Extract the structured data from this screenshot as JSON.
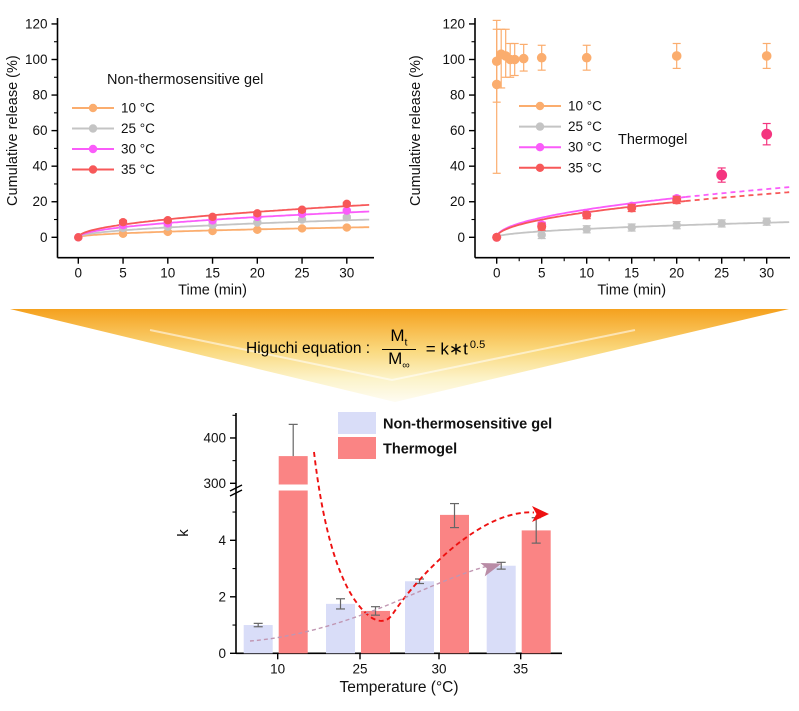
{
  "figure": {
    "background": "#ffffff"
  },
  "funnel": {
    "label": "Higuchi equation :",
    "m_symbol": "M",
    "numerator_sub": "t",
    "denominator_sub": "∞",
    "rhs": "= k∗t",
    "exponent": "0.5",
    "gradient_top": "#F5A11E",
    "gradient_mid": "#FAD97F",
    "gradient_low": "#FCF3C9",
    "gradient_tip": "#FEFCF2"
  },
  "colors": {
    "temp10": "#FBAD6E",
    "temp25": "#C4C4C4",
    "temp30": "#FA5CFA",
    "temp35": "#F75859",
    "outlier_pink": "#F4357F",
    "bar_nonthermo": "#D9DDF8",
    "bar_thermo": "#FA8484",
    "error_gray": "#666666",
    "dashed_red": "#EE1111",
    "dashed_purple": "#C096B2",
    "axis": "#000000"
  },
  "chart_data": [
    {
      "id": "left",
      "type": "scatter",
      "title": "Non-thermosensitive gel",
      "xlabel": "Time (min)",
      "ylabel": "Cumulative release (%)",
      "xlim": [
        0,
        32.5
      ],
      "ylim": [
        0,
        120
      ],
      "xticks": [
        0,
        5,
        10,
        15,
        20,
        25,
        30
      ],
      "yticks": [
        0,
        20,
        40,
        60,
        80,
        100,
        120
      ],
      "grid": false,
      "legend_position": "upper-left-inside",
      "legend": [
        {
          "label": "10 °C",
          "color": "#FBAD6E"
        },
        {
          "label": "25 °C",
          "color": "#C4C4C4"
        },
        {
          "label": "30 °C",
          "color": "#FA5CFA"
        },
        {
          "label": "35 °C",
          "color": "#F75859"
        }
      ],
      "series": [
        {
          "name": "10 °C",
          "color": "#FBAD6E",
          "fit_k": 1.0,
          "r": 4.2,
          "x": [
            0,
            5,
            10,
            15,
            20,
            25,
            30
          ],
          "y": [
            0,
            2.0,
            3.0,
            3.5,
            4.2,
            5.0,
            5.5
          ],
          "err": [
            0,
            0.8,
            0.8,
            0.8,
            0.8,
            0.8,
            0.8
          ]
        },
        {
          "name": "25 °C",
          "color": "#C4C4C4",
          "fit_k": 1.75,
          "r": 4.2,
          "x": [
            0,
            5,
            10,
            15,
            20,
            25,
            30
          ],
          "y": [
            0,
            5.2,
            6.0,
            7.0,
            8.3,
            10.0,
            11.3
          ],
          "err": [
            0,
            0.8,
            0.8,
            0.8,
            0.8,
            0.8,
            0.8
          ]
        },
        {
          "name": "30 °C",
          "color": "#FA5CFA",
          "fit_k": 2.55,
          "r": 4.2,
          "x": [
            0,
            5,
            10,
            15,
            20,
            25,
            30
          ],
          "y": [
            0,
            6.8,
            7.8,
            9.5,
            11.5,
            13.2,
            15.0
          ],
          "err": [
            0,
            0.8,
            0.8,
            0.8,
            0.8,
            0.8,
            0.8
          ]
        },
        {
          "name": "35 °C",
          "color": "#F75859",
          "fit_k": 3.2,
          "r": 4.2,
          "x": [
            0,
            5,
            10,
            15,
            20,
            25,
            30
          ],
          "y": [
            0,
            8.5,
            9.6,
            11.5,
            13.5,
            15.5,
            18.8
          ],
          "err": [
            0,
            1.0,
            0.8,
            0.8,
            0.8,
            0.8,
            0.8
          ]
        }
      ]
    },
    {
      "id": "right",
      "type": "scatter",
      "annotation": "Thermogel",
      "xlabel": "Time (min)",
      "ylabel": "Cumulative release (%)",
      "xlim": [
        0,
        32.5
      ],
      "ylim": [
        0,
        120
      ],
      "xticks": [
        0,
        5,
        10,
        15,
        20,
        25,
        30
      ],
      "yticks": [
        0,
        20,
        40,
        60,
        80,
        100,
        120
      ],
      "grid": false,
      "legend_position": "upper-left-inside",
      "legend": [
        {
          "label": "10 °C",
          "color": "#FBAD6E"
        },
        {
          "label": "25 °C",
          "color": "#C4C4C4"
        },
        {
          "label": "30 °C",
          "color": "#FA5CFA"
        },
        {
          "label": "35 °C",
          "color": "#F75859"
        }
      ],
      "series": [
        {
          "name": "25 °C",
          "color": "#C4C4C4",
          "fit_k": 1.5,
          "r": 4.2,
          "x": [
            0,
            5,
            10,
            15,
            20,
            25,
            30
          ],
          "y": [
            0,
            1.3,
            4.5,
            5.5,
            6.8,
            7.8,
            8.8
          ],
          "err": [
            0,
            2,
            2,
            2,
            2,
            2,
            2
          ]
        },
        {
          "name": "30 °C",
          "color": "#FA5CFA",
          "fit_k": 4.95,
          "fit_solid_until": 21,
          "r": 4.5,
          "x": [
            0,
            5,
            10,
            15,
            20
          ],
          "y": [
            0,
            7.0,
            13.0,
            17.5,
            21.8
          ],
          "err": [
            0,
            1.5,
            1.5,
            1.5,
            1.5
          ]
        },
        {
          "name": "35 °C",
          "color": "#F75859",
          "fit_k": 4.45,
          "fit_solid_until": 21,
          "r": 4.5,
          "x": [
            0,
            5,
            10,
            15,
            20
          ],
          "y": [
            0,
            6.0,
            12.5,
            16.5,
            21.0
          ],
          "err": [
            0,
            2,
            2,
            2,
            2
          ]
        },
        {
          "name": "10 °C",
          "color": "#FBAD6E",
          "r": 4.8,
          "x": [
            0,
            0,
            0.5,
            1,
            1.5,
            2,
            3,
            5,
            10,
            20,
            30
          ],
          "y": [
            86,
            99,
            103,
            102,
            100,
            100,
            100.5,
            101,
            101,
            102,
            102
          ],
          "err": [
            [
              50,
              36
            ],
            [
              23,
              18
            ],
            [
              19,
              14
            ],
            [
              12,
              15
            ],
            [
              10,
              9
            ],
            [
              9,
              9
            ],
            [
              7,
              8
            ],
            [
              7,
              7
            ],
            [
              7,
              7
            ],
            [
              7,
              7
            ],
            [
              7,
              7
            ]
          ]
        },
        {
          "name": "35 °C outliers",
          "color": "#F4357F",
          "r": 5.4,
          "x": [
            25,
            30
          ],
          "y": [
            35,
            58
          ],
          "err": [
            [
              4,
              4
            ],
            [
              6,
              6
            ]
          ]
        }
      ]
    },
    {
      "id": "bars",
      "type": "bar",
      "xlabel": "Temperature (°C)",
      "ylabel": "k",
      "categories": [
        10,
        25,
        30,
        35
      ],
      "yticks_lower": [
        0,
        2,
        4
      ],
      "yticks_upper": [
        300,
        400
      ],
      "axis_break_between": [
        5.7,
        300
      ],
      "grid": false,
      "legend_position": "upper-right-inside",
      "series": [
        {
          "name": "Non-thermosensitive gel",
          "color": "#D9DDF8",
          "values": [
            1.0,
            1.75,
            2.55,
            3.1
          ],
          "errors": [
            [
              0.06,
              0.06
            ],
            [
              0.18,
              0.18
            ],
            [
              0.08,
              0.08
            ],
            [
              0.12,
              0.12
            ]
          ]
        },
        {
          "name": "Thermogel",
          "color": "#FA8484",
          "values": [
            360,
            1.5,
            4.9,
            4.35
          ],
          "errors": [
            [
              0,
              70
            ],
            [
              0.15,
              0.15
            ],
            [
              0.45,
              0.4
            ],
            [
              0.45,
              0.45
            ]
          ]
        }
      ],
      "annotations": [
        {
          "name": "thermogel-trend-arrow",
          "style": "dashed",
          "color": "#EE1111",
          "shape": "steep decline from 10 °C, minimum near 25 °C, rising arrow toward 35 °C"
        },
        {
          "name": "nonthermo-trend-arrow",
          "style": "dashed",
          "color": "#C096B2",
          "shape": "gentle rise from 10 °C to 35 °C"
        }
      ]
    }
  ]
}
